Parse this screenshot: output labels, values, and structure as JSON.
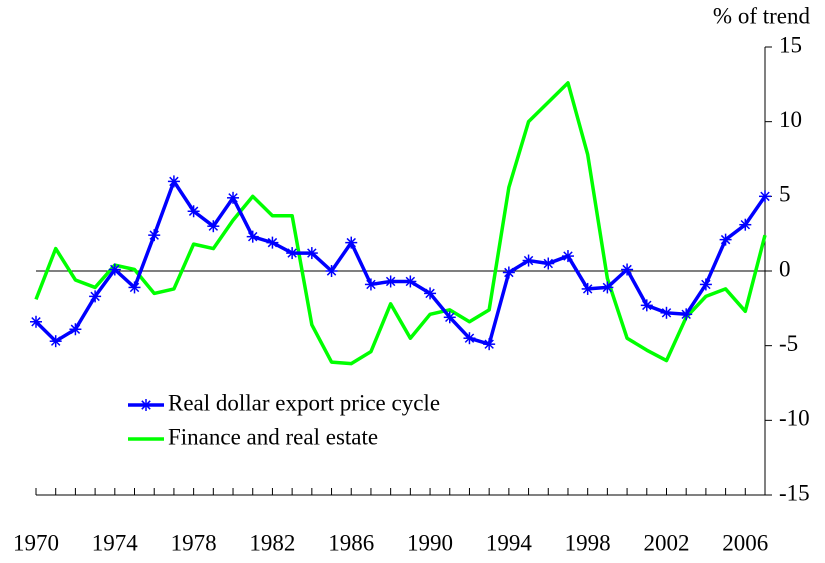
{
  "chart_data": {
    "type": "line",
    "y_label": "% of trend",
    "x": [
      1970,
      1971,
      1972,
      1973,
      1974,
      1975,
      1976,
      1977,
      1978,
      1979,
      1980,
      1981,
      1982,
      1983,
      1984,
      1985,
      1986,
      1987,
      1988,
      1989,
      1990,
      1991,
      1992,
      1993,
      1994,
      1995,
      1996,
      1997,
      1998,
      1999,
      2000,
      2001,
      2002,
      2003,
      2004,
      2005,
      2006,
      2007
    ],
    "series": [
      {
        "name": "Real dollar export price cycle",
        "color": "#0000ff",
        "marker": "star",
        "values": [
          -3.4,
          -4.7,
          -3.9,
          -1.7,
          0.1,
          -1.1,
          2.4,
          6.0,
          4.0,
          3.0,
          4.9,
          2.3,
          1.9,
          1.2,
          1.2,
          0,
          1.9,
          -0.9,
          -0.7,
          -0.7,
          -1.5,
          -3.1,
          -4.5,
          -4.9,
          -0.1,
          0.7,
          0.5,
          1.0,
          -1.2,
          -1.1,
          0.1,
          -2.3,
          -2.8,
          -2.9,
          -0.9,
          2.1,
          3.1,
          5.0
        ]
      },
      {
        "name": "Finance and real estate",
        "color": "#00ff00",
        "values": [
          -1.9,
          1.5,
          -0.6,
          -1.1,
          0.4,
          0.1,
          -1.5,
          -1.2,
          1.8,
          1.5,
          3.4,
          5.0,
          3.7,
          3.7,
          -3.6,
          -6.1,
          -6.2,
          -5.4,
          -2.2,
          -4.5,
          -2.9,
          -2.6,
          -3.4,
          -2.6,
          5.6,
          10.0,
          11.3,
          12.6,
          7.8,
          -0.5,
          -4.5,
          -5.3,
          -6.0,
          -3.1,
          -1.7,
          -1.2,
          -2.7,
          2.4
        ]
      }
    ],
    "xlim": [
      1970,
      2007
    ],
    "xticks": [
      1970,
      1974,
      1978,
      1982,
      1986,
      1990,
      1994,
      1998,
      2002,
      2006
    ],
    "ylim": [
      -15,
      15
    ],
    "yticks": [
      -15,
      -10,
      -5,
      0,
      5,
      10,
      15
    ],
    "zero_line": true
  }
}
